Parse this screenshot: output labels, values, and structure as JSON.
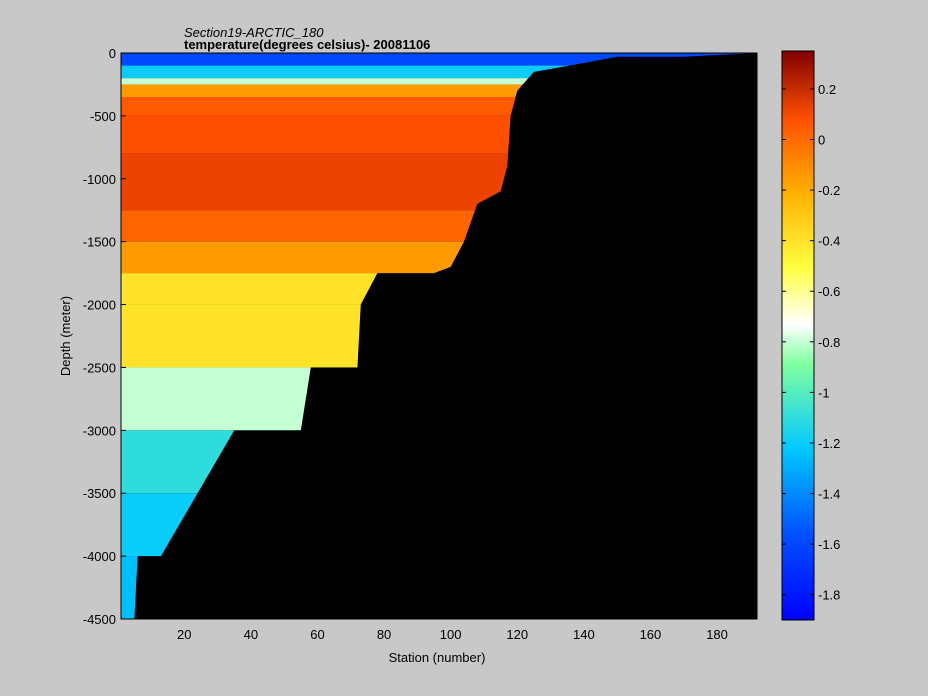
{
  "chart_data": {
    "type": "heatmap",
    "title_line1": "Section19-ARCTIC_180",
    "title_line2": "temperature(degrees  celsius)- 20081106",
    "xlabel": "Station (number)",
    "ylabel": "Depth (meter)",
    "xlim": [
      1,
      192
    ],
    "ylim": [
      -4500,
      0
    ],
    "xticks": [
      20,
      40,
      60,
      80,
      100,
      120,
      140,
      160,
      180
    ],
    "yticks": [
      0,
      -500,
      -1000,
      -1500,
      -2000,
      -2500,
      -3000,
      -3500,
      -4000,
      -4500
    ],
    "colorbar": {
      "clim": [
        -1.9,
        0.35
      ],
      "ticks": [
        0.2,
        0,
        -0.2,
        -0.4,
        -0.6,
        -0.8,
        -1,
        -1.2,
        -1.4,
        -1.6,
        -1.8
      ],
      "colormap": "jet",
      "min_color": "#0000ff",
      "max_color": "#800000"
    },
    "no_data_color": "#000000",
    "layers_depth_m": [
      {
        "top": 0,
        "bottom": -100,
        "temp": -1.6
      },
      {
        "top": -100,
        "bottom": -200,
        "temp": -1.2
      },
      {
        "top": -200,
        "bottom": -250,
        "temp": -0.8
      },
      {
        "top": -250,
        "bottom": -350,
        "temp": -0.15
      },
      {
        "top": -350,
        "bottom": -500,
        "temp": 0.05
      },
      {
        "top": -500,
        "bottom": -800,
        "temp": 0.08
      },
      {
        "top": -800,
        "bottom": -1250,
        "temp": 0.12
      },
      {
        "top": -1250,
        "bottom": -1500,
        "temp": 0.02
      },
      {
        "top": -1500,
        "bottom": -1750,
        "temp": -0.15
      },
      {
        "top": -1750,
        "bottom": -2000,
        "temp": -0.4
      },
      {
        "top": -2000,
        "bottom": -2500,
        "temp": -0.4
      },
      {
        "top": -2500,
        "bottom": -3000,
        "temp": -0.8
      },
      {
        "top": -3000,
        "bottom": -3500,
        "temp": -1.1
      },
      {
        "top": -3500,
        "bottom": -4000,
        "temp": -1.2
      },
      {
        "top": -4000,
        "bottom": -4500,
        "temp": -1.25
      }
    ],
    "bottom_depth_by_station": [
      {
        "x": 1,
        "depth": -4500
      },
      {
        "x": 5,
        "depth": -4500
      },
      {
        "x": 6,
        "depth": -4000
      },
      {
        "x": 12,
        "depth": -4000
      },
      {
        "x": 13,
        "depth": -4000
      },
      {
        "x": 35,
        "depth": -3000
      },
      {
        "x": 50,
        "depth": -3000
      },
      {
        "x": 55,
        "depth": -3000
      },
      {
        "x": 58,
        "depth": -2500
      },
      {
        "x": 72,
        "depth": -2500
      },
      {
        "x": 73,
        "depth": -2000
      },
      {
        "x": 78,
        "depth": -1750
      },
      {
        "x": 88,
        "depth": -1750
      },
      {
        "x": 95,
        "depth": -1750
      },
      {
        "x": 100,
        "depth": -1700
      },
      {
        "x": 104,
        "depth": -1500
      },
      {
        "x": 108,
        "depth": -1200
      },
      {
        "x": 115,
        "depth": -1100
      },
      {
        "x": 117,
        "depth": -900
      },
      {
        "x": 118,
        "depth": -500
      },
      {
        "x": 120,
        "depth": -300
      },
      {
        "x": 125,
        "depth": -150
      },
      {
        "x": 140,
        "depth": -80
      },
      {
        "x": 150,
        "depth": -30
      },
      {
        "x": 170,
        "depth": -30
      },
      {
        "x": 192,
        "depth": 0
      }
    ]
  }
}
